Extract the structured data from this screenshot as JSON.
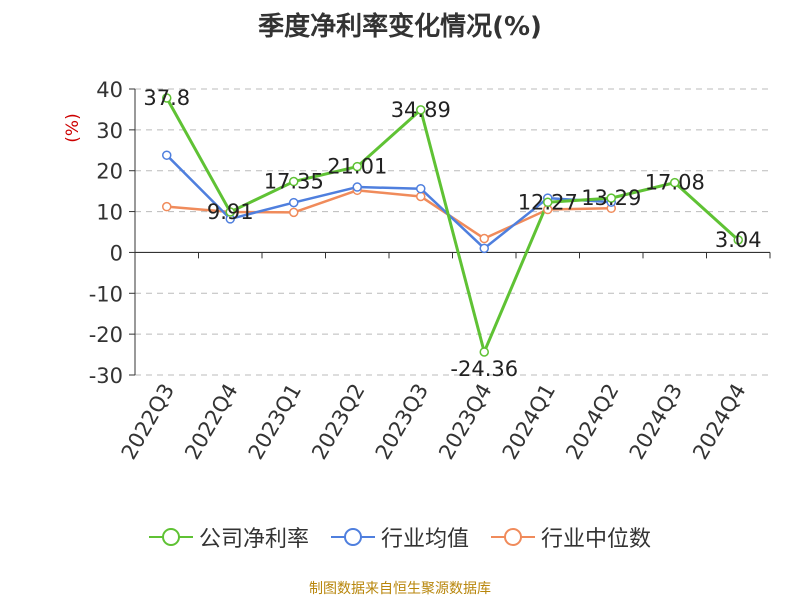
{
  "title": "季度净利率变化情况(%)",
  "source": "制图数据来自恒生聚源数据库",
  "colors": {
    "company": "#5fc234",
    "industry_avg": "#4f7fde",
    "industry_median": "#f08b5b",
    "grid": "#bbbbbb",
    "axis": "#333333",
    "unit": "#cc0000"
  },
  "chart_data": {
    "type": "line",
    "title": "季度净利率变化情况(%)",
    "ylabel": "(%)",
    "xlabel": "",
    "ylim": [
      -30,
      40
    ],
    "yticks": [
      40,
      30,
      20,
      10,
      0,
      -10,
      -20,
      -30
    ],
    "grid": true,
    "legend_position": "bottom",
    "categories": [
      "2022Q3",
      "2022Q4",
      "2023Q1",
      "2023Q2",
      "2023Q3",
      "2023Q4",
      "2024Q1",
      "2024Q2",
      "2024Q3",
      "2024Q4"
    ],
    "series": [
      {
        "name": "公司净利率",
        "key": "company",
        "values": [
          37.8,
          9.91,
          17.35,
          21.01,
          34.89,
          -24.36,
          12.27,
          13.29,
          17.08,
          3.04
        ],
        "labels": [
          "37.8",
          "9.91",
          "17.35",
          "21.01",
          "34.89",
          "-24.36",
          "12.27",
          "13.29",
          "17.08",
          "3.04"
        ]
      },
      {
        "name": "行业均值",
        "key": "industry_avg",
        "values": [
          23.8,
          8.2,
          12.2,
          16.0,
          15.6,
          1.0,
          13.3,
          12.3,
          null,
          null
        ]
      },
      {
        "name": "行业中位数",
        "key": "industry_median",
        "values": [
          11.2,
          9.9,
          9.8,
          15.2,
          13.7,
          3.4,
          10.5,
          10.8,
          null,
          null
        ]
      }
    ]
  }
}
